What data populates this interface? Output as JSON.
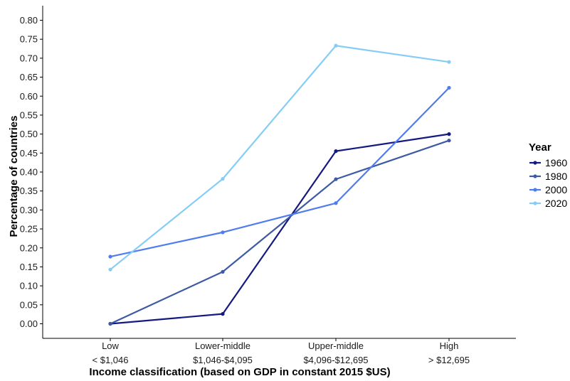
{
  "chart_data": {
    "type": "line",
    "categories": [
      "Low",
      "Lower-middle",
      "Upper-middle",
      "High"
    ],
    "category_sublabels": [
      "< $1,046",
      "$1,046-$4,095",
      "$4,096-$12,695",
      "> $12,695"
    ],
    "xlabel": "Income classification (based on GDP in constant 2015 $US)",
    "ylabel": "Percentage of countries",
    "ylim": [
      0,
      0.8
    ],
    "yticks": [
      "0.00",
      "0.05",
      "0.10",
      "0.15",
      "0.20",
      "0.25",
      "0.30",
      "0.35",
      "0.40",
      "0.45",
      "0.50",
      "0.55",
      "0.60",
      "0.65",
      "0.70",
      "0.75",
      "0.80"
    ],
    "grid": false,
    "legend": {
      "title": "Year",
      "position": "right"
    },
    "series": [
      {
        "name": "1960",
        "color": "#141a7f",
        "values": [
          0.0,
          0.026,
          0.455,
          0.5
        ]
      },
      {
        "name": "1980",
        "color": "#3d5aa3",
        "values": [
          0.0,
          0.137,
          0.381,
          0.483
        ]
      },
      {
        "name": "2000",
        "color": "#4f7cee",
        "values": [
          0.177,
          0.241,
          0.318,
          0.622
        ]
      },
      {
        "name": "2020",
        "color": "#86cdf5",
        "values": [
          0.143,
          0.382,
          0.733,
          0.69
        ]
      }
    ]
  }
}
